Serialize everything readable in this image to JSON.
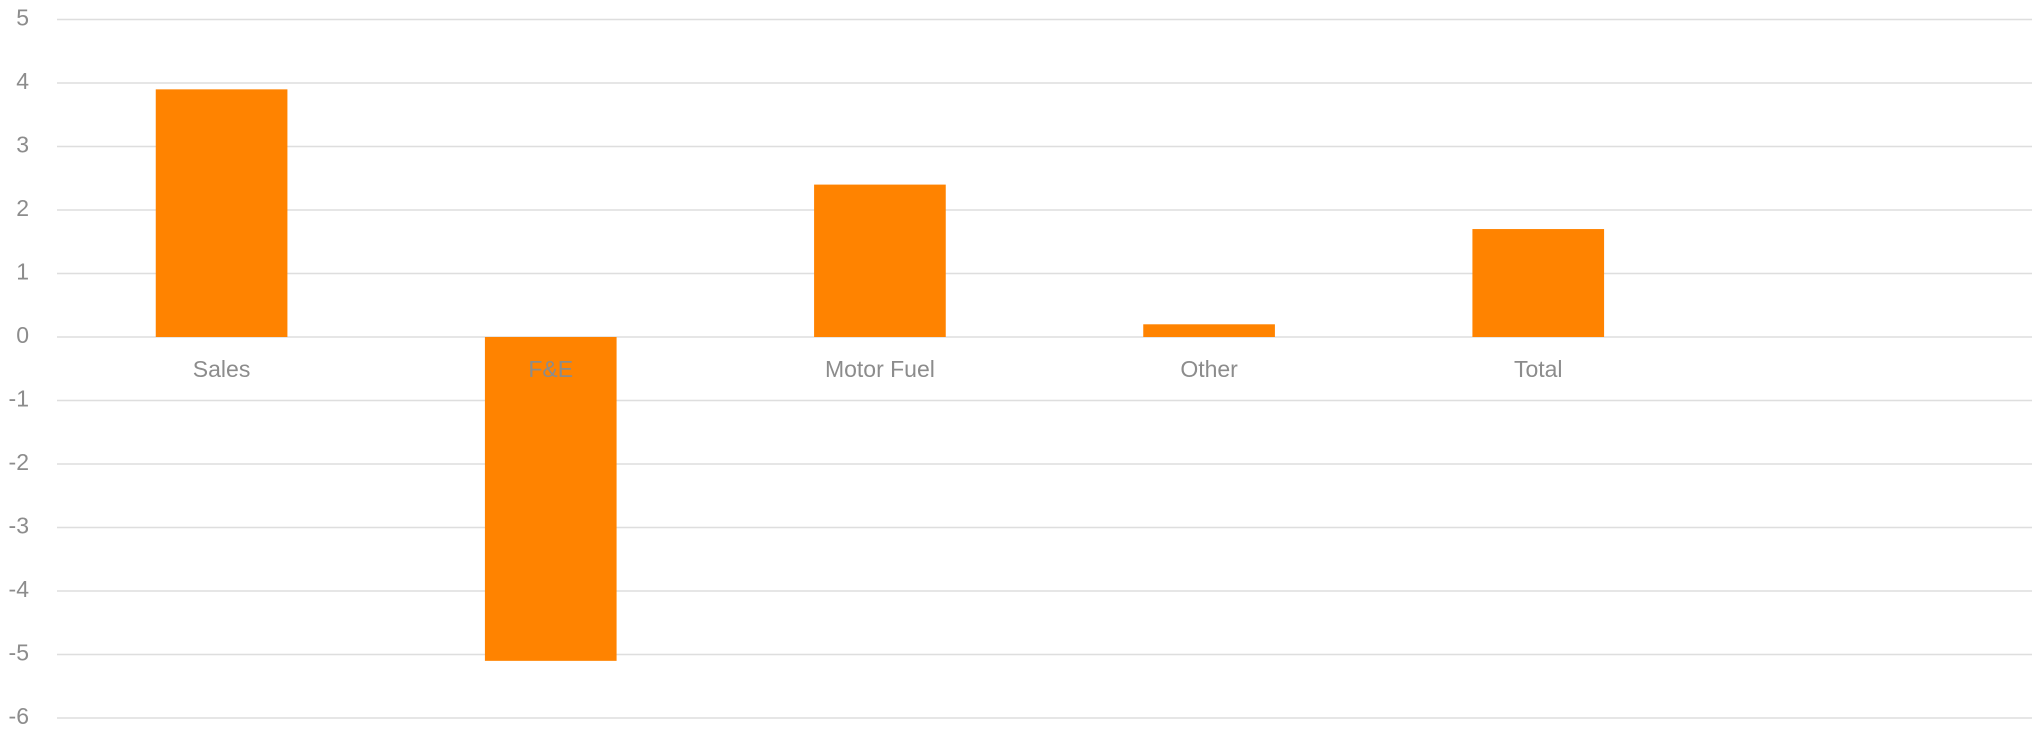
{
  "chart_data": {
    "type": "bar",
    "categories": [
      "Sales",
      "F&E",
      "Motor Fuel",
      "Other",
      "Total",
      null
    ],
    "values": [
      3.9,
      -5.1,
      2.4,
      0.2,
      1.7,
      null
    ],
    "color": "#ff8300",
    "ylim": [
      -6,
      5
    ],
    "yticks": [
      -6,
      -5,
      -4,
      -3,
      -2,
      -1,
      0,
      1,
      2,
      3,
      4,
      5
    ],
    "grid": true
  }
}
